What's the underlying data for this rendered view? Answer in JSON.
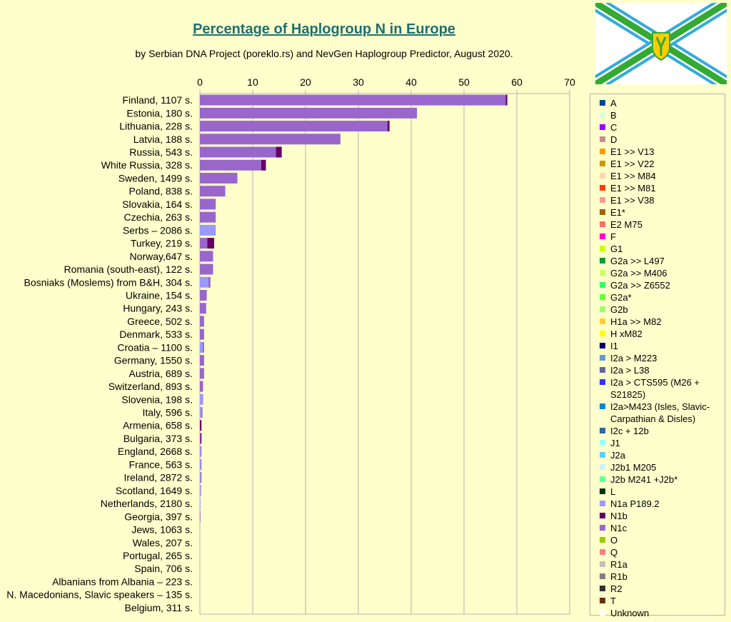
{
  "chart_data": {
    "type": "bar",
    "orientation": "horizontal",
    "stacked": true,
    "title": "Percentage of Haplogroup N in Europe",
    "subtitle": "by Serbian DNA Project (poreklo.rs) and NevGen Haplogroup Predictor, August 2020.",
    "xlim": [
      0,
      70
    ],
    "x_ticks": [
      "0",
      "10",
      "20",
      "30",
      "40",
      "50",
      "60",
      "70"
    ],
    "grid": true,
    "legend_position": "right",
    "categories": [
      "Finland, 1107 s.",
      "Estonia, 180 s.",
      "Lithuania, 228 s.",
      "Latvia, 188 s.",
      "Russia, 543 s.",
      "White Russia, 328 s.",
      "Sweden, 1499 s.",
      "Poland, 838 s.",
      "Slovakia, 164 s.",
      "Czechia, 263 s.",
      "Serbs – 2086 s.",
      "Turkey, 219 s.",
      "Norway,647 s.",
      "Romania (south-east), 122 s.",
      "Bosniaks (Moslems) from B&H, 304 s.",
      "Ukraine, 154 s.",
      "Hungary, 243 s.",
      "Greece, 502 s.",
      "Denmark, 533 s.",
      "Croatia – 1100 s.",
      "Germany, 1550 s.",
      "Austria, 689 s.",
      "Switzerland, 893 s.",
      "Slovenia, 198 s.",
      "Italy, 596 s.",
      "Armenia, 658 s.",
      "Bulgaria, 373 s.",
      "England, 2668 s.",
      "France, 563 s.",
      "Ireland, 2872 s.",
      "Scotland, 1649 s.",
      "Netherlands, 2180 s.",
      "Georgia, 397 s.",
      "Jews, 1063 s.",
      "Wales, 207 s.",
      "Portugal, 265 s.",
      "Spain, 706 s.",
      "Albanians from Albania – 223 s.",
      "N. Macedonians, Slavic speakers – 135 s.",
      "Belgium, 311 s."
    ],
    "series": [
      {
        "name": "N1a P189.2",
        "color": "#9999ff",
        "values": [
          0,
          0,
          0,
          0,
          0,
          0,
          0,
          0,
          0,
          0,
          3.0,
          0,
          0,
          0,
          1.6,
          0,
          0,
          0,
          0,
          0.5,
          0,
          0,
          0,
          0.5,
          0.3,
          0,
          0,
          0.2,
          0.2,
          0.1,
          0.1,
          0.1,
          0,
          0,
          0,
          0,
          0,
          0,
          0,
          0
        ]
      },
      {
        "name": "N1c",
        "color": "#9966cc",
        "values": [
          57.9,
          41.1,
          35.5,
          26.6,
          14.4,
          11.6,
          7.1,
          4.8,
          3.0,
          3.0,
          0,
          1.4,
          2.5,
          2.5,
          0.4,
          1.3,
          1.2,
          0.8,
          0.8,
          0.3,
          0.8,
          0.8,
          0.6,
          0.1,
          0.2,
          0,
          0.1,
          0.1,
          0.1,
          0.2,
          0.1,
          0,
          0.1,
          0,
          0,
          0,
          0,
          0,
          0,
          0
        ]
      },
      {
        "name": "N1b",
        "color": "#660066",
        "values": [
          0.3,
          0,
          0.4,
          0,
          1.1,
          0.9,
          0,
          0,
          0,
          0,
          0,
          1.3,
          0,
          0,
          0,
          0,
          0,
          0,
          0,
          0,
          0,
          0,
          0,
          0,
          0,
          0.3,
          0.2,
          0,
          0,
          0,
          0,
          0,
          0,
          0,
          0,
          0,
          0,
          0,
          0,
          0
        ]
      }
    ],
    "legend": [
      {
        "name": "A",
        "color": "#004586"
      },
      {
        "name": "B",
        "color": "#d9ffd9"
      },
      {
        "name": "C",
        "color": "#9900ff"
      },
      {
        "name": "D",
        "color": "#c09090"
      },
      {
        "name": "E1 >> V13",
        "color": "#ff9900"
      },
      {
        "name": "E1 >> V22",
        "color": "#cc9900"
      },
      {
        "name": "E1 >> M84",
        "color": "#ffd4b0"
      },
      {
        "name": "E1 >> M81",
        "color": "#ff4000"
      },
      {
        "name": "E1 >> V38",
        "color": "#ff9999"
      },
      {
        "name": "E1*",
        "color": "#996600"
      },
      {
        "name": "E2 M75",
        "color": "#ff7070"
      },
      {
        "name": "F",
        "color": "#ff00cc"
      },
      {
        "name": "G1",
        "color": "#ccff00"
      },
      {
        "name": "G2a >> L497",
        "color": "#009933"
      },
      {
        "name": "G2a >> M406",
        "color": "#ccff66"
      },
      {
        "name": "G2a >> Z6552",
        "color": "#33ff66"
      },
      {
        "name": "G2a*",
        "color": "#66ff33"
      },
      {
        "name": "G2b",
        "color": "#99ff66"
      },
      {
        "name": "H1a >> M82",
        "color": "#ffcc33"
      },
      {
        "name": "H xM82",
        "color": "#ffff00"
      },
      {
        "name": "I1",
        "color": "#000066"
      },
      {
        "name": "I2a > M223",
        "color": "#6699cc"
      },
      {
        "name": "I2a > L38",
        "color": "#666699"
      },
      {
        "name": "I2a > CTS595 (M26 + S21825)",
        "color": "#3333ff"
      },
      {
        "name": "I2a>M423 (Isles, Slavic-Carpathian & Disles)",
        "color": "#0088cc"
      },
      {
        "name": "I2c + 12b",
        "color": "#336699"
      },
      {
        "name": "J1",
        "color": "#99ffff"
      },
      {
        "name": "J2a",
        "color": "#66ccff"
      },
      {
        "name": "J2b1 M205",
        "color": "#ccf0ff"
      },
      {
        "name": "J2b M241 +J2b*",
        "color": "#66ff99"
      },
      {
        "name": "L",
        "color": "#003300"
      },
      {
        "name": "N1a P189.2",
        "color": "#9999ff"
      },
      {
        "name": "N1b",
        "color": "#660066"
      },
      {
        "name": "N1c",
        "color": "#9966cc"
      },
      {
        "name": "O",
        "color": "#99cc00"
      },
      {
        "name": "Q",
        "color": "#ff8080"
      },
      {
        "name": "R1a",
        "color": "#c0c0c0"
      },
      {
        "name": "R1b",
        "color": "#808080"
      },
      {
        "name": "R2",
        "color": "#333333"
      },
      {
        "name": "T",
        "color": "#663300"
      },
      {
        "name": "Unknown",
        "color": "#ffffee"
      }
    ]
  },
  "flag": {
    "background": "#ffffff",
    "cross_outer": "#33aadd",
    "cross_inner": "#33aa33",
    "emblem_fill": "#ffcc00"
  }
}
